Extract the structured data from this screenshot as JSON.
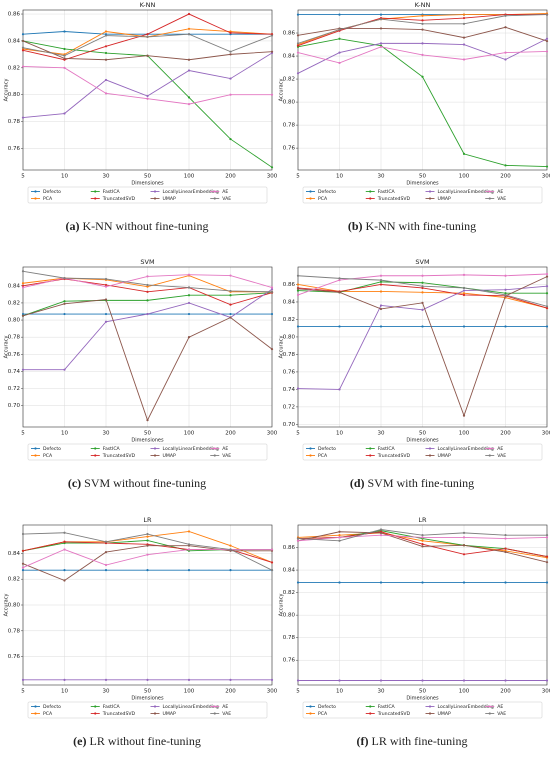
{
  "chart_data": [
    {
      "type": "line",
      "title": "K-NN",
      "x_label": "Dimensiones",
      "y_label": "Accuracy",
      "caption_label": "(a)",
      "caption": "K-NN without fine-tuning",
      "grid": true,
      "legend": "below",
      "categories": [
        "5",
        "10",
        "30",
        "50",
        "100",
        "200",
        "300"
      ],
      "ylim": [
        0.744,
        0.863
      ],
      "yticks": [
        0.76,
        0.78,
        {
          "value": 0.8,
          "label": "0.80"
        },
        0.82,
        0.84,
        0.86
      ],
      "series": [
        {
          "name": "Defecto",
          "color": "#1f77b4",
          "values": [
            0.845,
            0.847,
            0.845,
            0.845,
            0.845,
            0.845,
            0.845
          ]
        },
        {
          "name": "PCA",
          "color": "#ff7f0e",
          "values": [
            0.834,
            0.83,
            0.847,
            0.843,
            0.849,
            0.847,
            0.845
          ]
        },
        {
          "name": "FastICA",
          "color": "#2ca02c",
          "values": [
            0.84,
            0.834,
            0.831,
            0.829,
            0.798,
            0.767,
            0.746
          ]
        },
        {
          "name": "TruncatedSVD",
          "color": "#d62728",
          "values": [
            0.833,
            0.826,
            0.836,
            0.845,
            0.86,
            0.846,
            0.845
          ]
        },
        {
          "name": "LocallyLinearEmbedding",
          "color": "#9467bd",
          "values": [
            0.783,
            0.786,
            0.811,
            0.799,
            0.818,
            0.812,
            0.831
          ]
        },
        {
          "name": "UMAP",
          "color": "#8c564b",
          "values": [
            0.84,
            0.827,
            0.826,
            0.829,
            0.826,
            0.83,
            0.832
          ]
        },
        {
          "name": "AE",
          "color": "#e377c2",
          "values": [
            0.821,
            0.82,
            0.801,
            0.797,
            0.793,
            0.8,
            0.8
          ]
        },
        {
          "name": "VAE",
          "color": "#7f7f7f",
          "values": [
            0.835,
            0.829,
            0.844,
            0.843,
            0.845,
            0.832,
            0.844
          ]
        }
      ]
    },
    {
      "type": "line",
      "title": "K-NN",
      "x_label": "Dimensiones",
      "y_label": "Accuracy",
      "caption_label": "(b)",
      "caption": "K-NN with fine-tuning",
      "grid": true,
      "legend": "below",
      "categories": [
        "5",
        "10",
        "30",
        "50",
        "100",
        "200",
        "300"
      ],
      "ylim": [
        0.741,
        0.88
      ],
      "yticks": [
        0.76,
        0.78,
        {
          "value": 0.8,
          "label": "0.80"
        },
        0.82,
        0.84,
        0.86
      ],
      "series": [
        {
          "name": "Defecto",
          "color": "#1f77b4",
          "values": [
            0.876,
            0.876,
            0.876,
            0.876,
            0.876,
            0.876,
            0.876
          ]
        },
        {
          "name": "PCA",
          "color": "#ff7f0e",
          "values": [
            0.85,
            0.863,
            0.872,
            0.875,
            0.876,
            0.876,
            0.877
          ]
        },
        {
          "name": "FastICA",
          "color": "#2ca02c",
          "values": [
            0.848,
            0.855,
            0.849,
            0.822,
            0.755,
            0.745,
            0.744
          ]
        },
        {
          "name": "TruncatedSVD",
          "color": "#d62728",
          "values": [
            0.849,
            0.862,
            0.873,
            0.871,
            0.873,
            0.876,
            0.876
          ]
        },
        {
          "name": "LocallyLinearEmbedding",
          "color": "#9467bd",
          "values": [
            0.825,
            0.843,
            0.851,
            0.851,
            0.85,
            0.837,
            0.855
          ]
        },
        {
          "name": "UMAP",
          "color": "#8c564b",
          "values": [
            0.858,
            0.864,
            0.864,
            0.863,
            0.856,
            0.865,
            0.853
          ]
        },
        {
          "name": "AE",
          "color": "#e377c2",
          "values": [
            0.843,
            0.834,
            0.848,
            0.841,
            0.837,
            0.843,
            0.844
          ]
        },
        {
          "name": "VAE",
          "color": "#7f7f7f",
          "values": [
            0.851,
            0.863,
            0.872,
            0.868,
            0.868,
            0.875,
            0.876
          ]
        }
      ]
    },
    {
      "type": "line",
      "title": "SVM",
      "x_label": "Dimensiones",
      "y_label": "Accuracy",
      "caption_label": "(c)",
      "caption": "SVM without fine-tuning",
      "grid": true,
      "legend": "below",
      "categories": [
        "5",
        "10",
        "30",
        "50",
        "100",
        "200",
        "300"
      ],
      "ylim": [
        0.675,
        0.862
      ],
      "yticks": [
        {
          "value": 0.7,
          "label": "0.70"
        },
        0.72,
        0.74,
        0.76,
        0.78,
        {
          "value": 0.8,
          "label": "0.80"
        },
        0.82,
        0.84
      ],
      "series": [
        {
          "name": "Defecto",
          "color": "#1f77b4",
          "values": [
            0.807,
            0.807,
            0.807,
            0.807,
            0.807,
            0.807,
            0.807
          ]
        },
        {
          "name": "PCA",
          "color": "#ff7f0e",
          "values": [
            0.843,
            0.849,
            0.847,
            0.839,
            0.852,
            0.833,
            0.833
          ]
        },
        {
          "name": "FastICA",
          "color": "#2ca02c",
          "values": [
            0.805,
            0.822,
            0.823,
            0.823,
            0.829,
            0.829,
            0.832
          ]
        },
        {
          "name": "TruncatedSVD",
          "color": "#d62728",
          "values": [
            0.84,
            0.848,
            0.841,
            0.833,
            0.838,
            0.818,
            0.832
          ]
        },
        {
          "name": "LocallyLinearEmbedding",
          "color": "#9467bd",
          "values": [
            0.742,
            0.742,
            0.798,
            0.807,
            0.82,
            0.803,
            0.836
          ]
        },
        {
          "name": "UMAP",
          "color": "#8c564b",
          "values": [
            0.805,
            0.819,
            0.824,
            0.683,
            0.78,
            0.803,
            0.766
          ]
        },
        {
          "name": "AE",
          "color": "#e377c2",
          "values": [
            0.838,
            0.849,
            0.839,
            0.851,
            0.853,
            0.852,
            0.838
          ]
        },
        {
          "name": "VAE",
          "color": "#7f7f7f",
          "values": [
            0.857,
            0.849,
            0.848,
            0.841,
            0.838,
            0.834,
            0.833
          ]
        }
      ]
    },
    {
      "type": "line",
      "title": "SVM",
      "x_label": "Dimensiones",
      "y_label": "Accuracy",
      "caption_label": "(d)",
      "caption": "SVM with fine-tuning",
      "grid": true,
      "legend": "below",
      "categories": [
        "5",
        "10",
        "30",
        "50",
        "100",
        "200",
        "300"
      ],
      "ylim": [
        0.697,
        0.88
      ],
      "yticks": [
        {
          "value": 0.7,
          "label": "0.70"
        },
        0.72,
        0.74,
        0.76,
        0.78,
        {
          "value": 0.8,
          "label": "0.80"
        },
        0.82,
        0.84,
        0.86
      ],
      "series": [
        {
          "name": "Defecto",
          "color": "#1f77b4",
          "values": [
            0.812,
            0.812,
            0.812,
            0.812,
            0.812,
            0.812,
            0.812
          ]
        },
        {
          "name": "PCA",
          "color": "#ff7f0e",
          "values": [
            0.86,
            0.852,
            0.852,
            0.851,
            0.85,
            0.845,
            0.833
          ]
        },
        {
          "name": "FastICA",
          "color": "#2ca02c",
          "values": [
            0.853,
            0.851,
            0.863,
            0.862,
            0.856,
            0.85,
            0.85
          ]
        },
        {
          "name": "TruncatedSVD",
          "color": "#d62728",
          "values": [
            0.856,
            0.852,
            0.86,
            0.856,
            0.848,
            0.847,
            0.833
          ]
        },
        {
          "name": "LocallyLinearEmbedding",
          "color": "#9467bd",
          "values": [
            0.741,
            0.74,
            0.836,
            0.831,
            0.853,
            0.854,
            0.858
          ]
        },
        {
          "name": "UMAP",
          "color": "#8c564b",
          "values": [
            0.855,
            0.851,
            0.832,
            0.839,
            0.71,
            0.847,
            0.869
          ]
        },
        {
          "name": "AE",
          "color": "#e377c2",
          "values": [
            0.848,
            0.865,
            0.87,
            0.87,
            0.871,
            0.87,
            0.872
          ]
        },
        {
          "name": "VAE",
          "color": "#7f7f7f",
          "values": [
            0.87,
            0.867,
            0.865,
            0.858,
            0.856,
            0.848,
            0.835
          ]
        }
      ]
    },
    {
      "type": "line",
      "title": "LR",
      "x_label": "Dimensiones",
      "y_label": "Accuracy",
      "caption_label": "(e)",
      "caption": "LR without fine-tuning",
      "grid": true,
      "legend": "below",
      "categories": [
        "5",
        "10",
        "30",
        "50",
        "100",
        "200",
        "300"
      ],
      "ylim": [
        0.738,
        0.862
      ],
      "yticks": [
        0.76,
        0.78,
        {
          "value": 0.8,
          "label": "0.80"
        },
        0.82,
        0.84
      ],
      "series": [
        {
          "name": "Defecto",
          "color": "#1f77b4",
          "values": [
            0.827,
            0.827,
            0.827,
            0.827,
            0.827,
            0.827,
            0.827
          ]
        },
        {
          "name": "PCA",
          "color": "#ff7f0e",
          "values": [
            0.842,
            0.849,
            0.849,
            0.853,
            0.857,
            0.846,
            0.833
          ]
        },
        {
          "name": "FastICA",
          "color": "#2ca02c",
          "values": [
            0.842,
            0.848,
            0.848,
            0.85,
            0.842,
            0.843,
            0.843
          ]
        },
        {
          "name": "TruncatedSVD",
          "color": "#d62728",
          "values": [
            0.842,
            0.849,
            0.848,
            0.847,
            0.843,
            0.843,
            0.833
          ]
        },
        {
          "name": "LocallyLinearEmbedding",
          "color": "#9467bd",
          "values": [
            0.742,
            0.742,
            0.742,
            0.742,
            0.742,
            0.742,
            0.742
          ]
        },
        {
          "name": "UMAP",
          "color": "#8c564b",
          "values": [
            0.832,
            0.819,
            0.841,
            0.846,
            0.846,
            0.842,
            0.842
          ]
        },
        {
          "name": "AE",
          "color": "#e377c2",
          "values": [
            0.829,
            0.843,
            0.831,
            0.839,
            0.843,
            0.843,
            0.843
          ]
        },
        {
          "name": "VAE",
          "color": "#7f7f7f",
          "values": [
            0.855,
            0.856,
            0.849,
            0.855,
            0.847,
            0.843,
            0.827
          ]
        }
      ]
    },
    {
      "type": "line",
      "title": "LR",
      "x_label": "Dimensiones",
      "y_label": "Accuracy",
      "caption_label": "(f)",
      "caption": "LR with fine-tuning",
      "grid": true,
      "legend": "below",
      "categories": [
        "5",
        "10",
        "30",
        "50",
        "100",
        "200",
        "300"
      ],
      "ylim": [
        0.738,
        0.88
      ],
      "yticks": [
        0.76,
        0.78,
        {
          "value": 0.8,
          "label": "0.80"
        },
        0.82,
        0.84,
        0.86
      ],
      "series": [
        {
          "name": "Defecto",
          "color": "#1f77b4",
          "values": [
            0.829,
            0.829,
            0.829,
            0.829,
            0.829,
            0.829,
            0.829
          ]
        },
        {
          "name": "PCA",
          "color": "#ff7f0e",
          "values": [
            0.869,
            0.871,
            0.873,
            0.866,
            0.862,
            0.857,
            0.851
          ]
        },
        {
          "name": "FastICA",
          "color": "#2ca02c",
          "values": [
            0.868,
            0.869,
            0.875,
            0.868,
            0.862,
            0.859,
            0.852
          ]
        },
        {
          "name": "TruncatedSVD",
          "color": "#d62728",
          "values": [
            0.868,
            0.869,
            0.874,
            0.863,
            0.854,
            0.859,
            0.852
          ]
        },
        {
          "name": "LocallyLinearEmbedding",
          "color": "#9467bd",
          "values": [
            0.742,
            0.742,
            0.742,
            0.742,
            0.742,
            0.742,
            0.742
          ]
        },
        {
          "name": "UMAP",
          "color": "#8c564b",
          "values": [
            0.866,
            0.874,
            0.873,
            0.861,
            0.862,
            0.856,
            0.847
          ]
        },
        {
          "name": "AE",
          "color": "#e377c2",
          "values": [
            0.866,
            0.869,
            0.871,
            0.869,
            0.869,
            0.868,
            0.869
          ]
        },
        {
          "name": "VAE",
          "color": "#7f7f7f",
          "values": [
            0.868,
            0.866,
            0.876,
            0.871,
            0.873,
            0.871,
            0.871
          ]
        }
      ]
    }
  ]
}
